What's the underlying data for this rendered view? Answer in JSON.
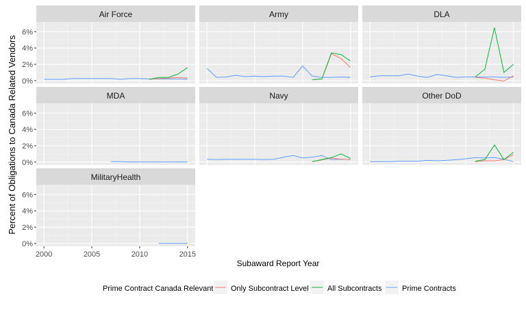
{
  "chart_data": {
    "type": "line",
    "ylabel": "Percent of Obligations to Canada Related Vendors",
    "xlabel": "Subaward Report Year",
    "x_ticks": [
      2000,
      2005,
      2010,
      2015
    ],
    "y_ticks": [
      "0%",
      "2%",
      "4%",
      "6%"
    ],
    "xlim": [
      1999.2,
      2015.8
    ],
    "ylim": [
      -0.35,
      7.2
    ],
    "grid": true,
    "legend": {
      "title": "Prime Contract Canada Relevant",
      "position": "bottom",
      "entries": [
        {
          "label": "Only Subcontract Level",
          "color": "#F8766D"
        },
        {
          "label": "All Subcontracts",
          "color": "#00BA38"
        },
        {
          "label": "Prime Contracts",
          "color": "#619CFF"
        }
      ]
    },
    "panels": [
      {
        "title": "Air Force",
        "series": [
          {
            "name": "Prime Contracts",
            "x": [
              2000,
              2001,
              2002,
              2003,
              2004,
              2005,
              2006,
              2007,
              2008,
              2009,
              2010,
              2011,
              2012,
              2013,
              2014,
              2015
            ],
            "y": [
              0.15,
              0.15,
              0.15,
              0.25,
              0.25,
              0.25,
              0.25,
              0.25,
              0.15,
              0.25,
              0.25,
              0.2,
              0.2,
              0.2,
              0.2,
              0.15
            ]
          },
          {
            "name": "Only Subcontract Level",
            "x": [
              2011,
              2012,
              2013,
              2014,
              2015
            ],
            "y": [
              0.15,
              0.25,
              0.3,
              0.4,
              0.3
            ]
          },
          {
            "name": "All Subcontracts",
            "x": [
              2011,
              2012,
              2013,
              2014,
              2015
            ],
            "y": [
              0.15,
              0.4,
              0.4,
              0.8,
              1.6
            ]
          }
        ]
      },
      {
        "title": "Army",
        "series": [
          {
            "name": "Prime Contracts",
            "x": [
              2000,
              2001,
              2002,
              2003,
              2004,
              2005,
              2006,
              2007,
              2008,
              2009,
              2010,
              2011,
              2012,
              2013,
              2014,
              2015
            ],
            "y": [
              1.5,
              0.4,
              0.45,
              0.65,
              0.5,
              0.55,
              0.5,
              0.55,
              0.55,
              0.4,
              1.8,
              0.55,
              0.4,
              0.4,
              0.45,
              0.4
            ]
          },
          {
            "name": "Only Subcontract Level",
            "x": [
              2011,
              2012,
              2013,
              2014,
              2015
            ],
            "y": [
              0.1,
              0.2,
              3.3,
              2.7,
              1.6
            ]
          },
          {
            "name": "All Subcontracts",
            "x": [
              2011,
              2012,
              2013,
              2014,
              2015
            ],
            "y": [
              0.1,
              0.2,
              3.4,
              3.2,
              2.4
            ]
          }
        ]
      },
      {
        "title": "DLA",
        "series": [
          {
            "name": "Prime Contracts",
            "x": [
              2000,
              2001,
              2002,
              2003,
              2004,
              2005,
              2006,
              2007,
              2008,
              2009,
              2010,
              2011,
              2012,
              2013,
              2014,
              2015
            ],
            "y": [
              0.45,
              0.6,
              0.6,
              0.6,
              0.8,
              0.55,
              0.4,
              0.75,
              0.6,
              0.4,
              0.45,
              0.45,
              0.45,
              0.45,
              0.4,
              0.45
            ]
          },
          {
            "name": "Only Subcontract Level",
            "x": [
              2011,
              2012,
              2013,
              2014,
              2015
            ],
            "y": [
              0.4,
              0.3,
              0.1,
              -0.05,
              0.6
            ]
          },
          {
            "name": "All Subcontracts",
            "x": [
              2011,
              2012,
              2013,
              2014,
              2015
            ],
            "y": [
              0.45,
              1.4,
              6.5,
              1.0,
              2.0
            ]
          }
        ]
      },
      {
        "title": "MDA",
        "series": [
          {
            "name": "Prime Contracts",
            "x": [
              2007,
              2008,
              2009,
              2010,
              2011,
              2012,
              2013,
              2014,
              2015
            ],
            "y": [
              0.05,
              0.05,
              0.0,
              0.0,
              0.0,
              0.0,
              0.0,
              0.0,
              0.0
            ]
          }
        ]
      },
      {
        "title": "Navy",
        "series": [
          {
            "name": "Prime Contracts",
            "x": [
              2000,
              2001,
              2002,
              2003,
              2004,
              2005,
              2006,
              2007,
              2008,
              2009,
              2010,
              2011,
              2012,
              2013,
              2014,
              2015
            ],
            "y": [
              0.35,
              0.3,
              0.35,
              0.35,
              0.35,
              0.35,
              0.3,
              0.35,
              0.6,
              0.8,
              0.5,
              0.6,
              0.8,
              0.3,
              0.35,
              0.3
            ]
          },
          {
            "name": "Only Subcontract Level",
            "x": [
              2011,
              2012,
              2013,
              2014,
              2015
            ],
            "y": [
              0.05,
              0.25,
              0.5,
              0.35,
              0.3
            ]
          },
          {
            "name": "All Subcontracts",
            "x": [
              2011,
              2012,
              2013,
              2014,
              2015
            ],
            "y": [
              0.05,
              0.3,
              0.55,
              1.0,
              0.45
            ]
          }
        ]
      },
      {
        "title": "Other DoD",
        "series": [
          {
            "name": "Prime Contracts",
            "x": [
              2000,
              2001,
              2002,
              2003,
              2004,
              2005,
              2006,
              2007,
              2008,
              2009,
              2010,
              2011,
              2012,
              2013,
              2014,
              2015
            ],
            "y": [
              0.05,
              0.05,
              0.05,
              0.1,
              0.1,
              0.1,
              0.2,
              0.15,
              0.2,
              0.3,
              0.4,
              0.55,
              0.5,
              0.55,
              0.35,
              0.05
            ]
          },
          {
            "name": "Only Subcontract Level",
            "x": [
              2011,
              2012,
              2013,
              2014,
              2015
            ],
            "y": [
              0.05,
              0.15,
              0.15,
              0.3,
              0.9
            ]
          },
          {
            "name": "All Subcontracts",
            "x": [
              2011,
              2012,
              2013,
              2014,
              2015
            ],
            "y": [
              0.1,
              0.3,
              2.1,
              0.3,
              1.2
            ]
          }
        ]
      },
      {
        "title": "MilitaryHealth",
        "series": [
          {
            "name": "Prime Contracts",
            "x": [
              2012,
              2013,
              2014,
              2015
            ],
            "y": [
              0.0,
              0.0,
              0.0,
              0.0
            ]
          }
        ]
      }
    ]
  }
}
